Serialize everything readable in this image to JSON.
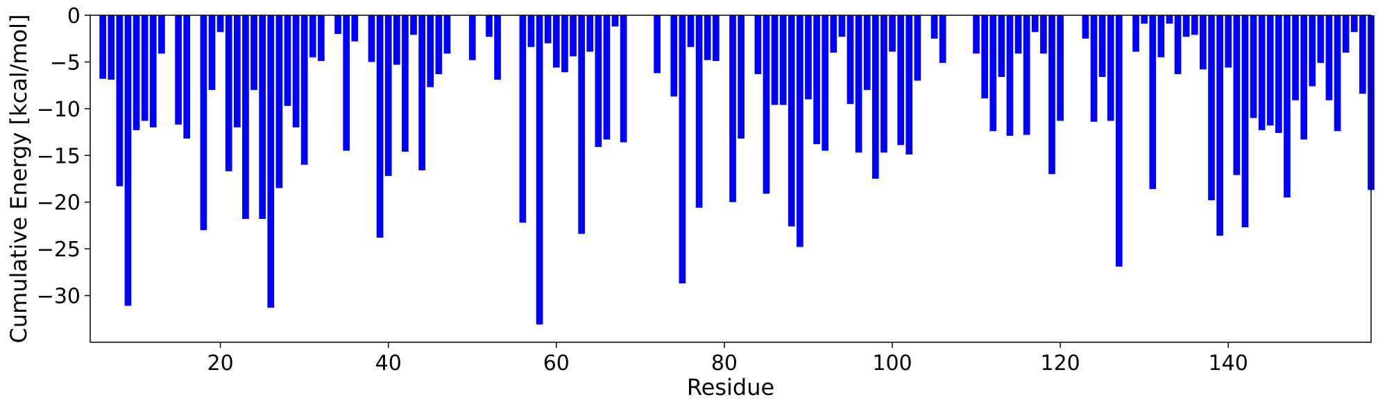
{
  "chart_data": {
    "type": "bar",
    "title": "",
    "xlabel": "Residue",
    "ylabel": "Cumulative Energy [kcal/mol]",
    "xlim": [
      4.5,
      157
    ],
    "ylim": [
      -35,
      0
    ],
    "xticks": [
      20,
      40,
      60,
      80,
      100,
      120,
      140
    ],
    "yticks": [
      0,
      -5,
      -10,
      -15,
      -20,
      -25,
      -30
    ],
    "ytick_labels": [
      "0",
      "−5",
      "−10",
      "−15",
      "−20",
      "−25",
      "−30"
    ],
    "bar_color": "#0000ff",
    "grid": false,
    "x": [
      6,
      7,
      8,
      9,
      10,
      11,
      12,
      13,
      15,
      16,
      18,
      19,
      20,
      21,
      22,
      23,
      24,
      25,
      26,
      27,
      28,
      29,
      30,
      31,
      32,
      34,
      35,
      36,
      38,
      39,
      40,
      41,
      42,
      43,
      44,
      45,
      46,
      47,
      50,
      52,
      53,
      56,
      57,
      58,
      59,
      60,
      61,
      62,
      63,
      64,
      65,
      66,
      67,
      68,
      72,
      74,
      75,
      76,
      77,
      78,
      79,
      81,
      82,
      84,
      85,
      86,
      87,
      88,
      89,
      90,
      91,
      92,
      93,
      94,
      95,
      96,
      97,
      98,
      99,
      100,
      101,
      102,
      103,
      105,
      106,
      110,
      111,
      112,
      113,
      114,
      115,
      116,
      117,
      118,
      119,
      120,
      123,
      124,
      125,
      126,
      127,
      129,
      130,
      131,
      132,
      133,
      134,
      135,
      136,
      137,
      138,
      139,
      140,
      141,
      142,
      143,
      144,
      145,
      146,
      147,
      148,
      149,
      150,
      151,
      152,
      153,
      154,
      155,
      156,
      157
    ],
    "values": [
      -6.8,
      -6.9,
      -18.3,
      -31.1,
      -12.3,
      -11.3,
      -12.0,
      -4.1,
      -11.7,
      -13.2,
      -23.0,
      -8.0,
      -1.8,
      -16.7,
      -12.0,
      -21.8,
      -8.0,
      -21.8,
      -31.3,
      -18.5,
      -9.7,
      -12.0,
      -16.0,
      -4.5,
      -4.9,
      -2.0,
      -14.5,
      -2.8,
      -5.0,
      -23.8,
      -17.2,
      -5.3,
      -14.6,
      -2.1,
      -16.6,
      -7.7,
      -6.3,
      -4.1,
      -4.8,
      -2.3,
      -6.9,
      -22.2,
      -3.4,
      -33.1,
      -3.0,
      -5.6,
      -6.1,
      -4.4,
      -23.4,
      -3.9,
      -14.1,
      -13.3,
      -1.2,
      -13.6,
      -6.2,
      -8.7,
      -28.7,
      -3.4,
      -20.6,
      -4.8,
      -4.9,
      -20.0,
      -13.2,
      -6.3,
      -19.1,
      -9.6,
      -9.6,
      -22.6,
      -24.8,
      -9.0,
      -13.8,
      -14.5,
      -4.0,
      -2.3,
      -9.5,
      -14.7,
      -8.0,
      -17.5,
      -14.7,
      -3.9,
      -13.9,
      -14.9,
      -7.0,
      -2.5,
      -5.1,
      -4.1,
      -8.9,
      -12.4,
      -6.6,
      -12.9,
      -4.1,
      -12.8,
      -1.8,
      -4.1,
      -17.0,
      -11.3,
      -2.5,
      -11.4,
      -6.6,
      -11.3,
      -26.9,
      -3.9,
      -0.9,
      -18.6,
      -4.5,
      -0.9,
      -6.3,
      -2.3,
      -2.1,
      -5.8,
      -19.8,
      -23.6,
      -5.6,
      -17.1,
      -22.7,
      -11.0,
      -12.3,
      -11.8,
      -12.6,
      -19.5,
      -9.1,
      -13.3,
      -7.6,
      -5.1,
      -9.1,
      -12.4,
      -4.0,
      -1.8,
      -8.4,
      -18.7
    ]
  }
}
